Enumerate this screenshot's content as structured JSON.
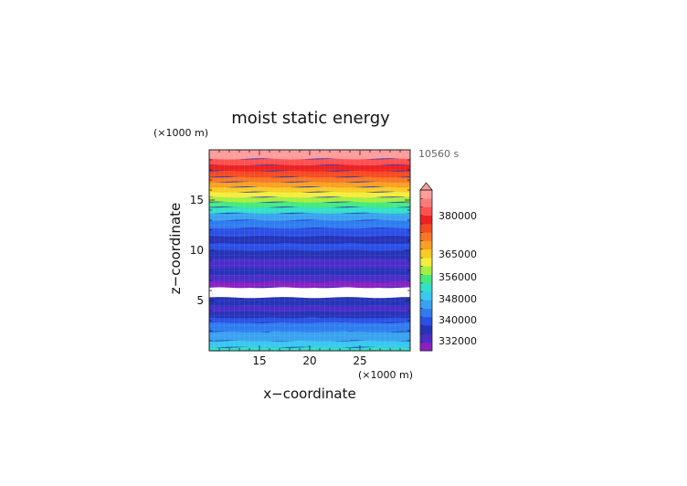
{
  "chart_data": {
    "type": "heatmap",
    "title": "moist static energy",
    "time_label": "10560 s",
    "xlabel": "x−coordinate",
    "ylabel": "z−coordinate",
    "x_unit": "(×1000 m)",
    "y_unit": "(×1000 m)",
    "xlim": [
      10,
      30
    ],
    "ylim": [
      0,
      20
    ],
    "x_ticks": [
      15,
      20,
      25
    ],
    "y_ticks": [
      5,
      10,
      15
    ],
    "colorbar": {
      "labels": [
        "380000",
        "365000",
        "356000",
        "348000",
        "340000",
        "332000"
      ],
      "extend": "max",
      "colors": [
        "#8a1fc2",
        "#4a2cc8",
        "#2533b8",
        "#2a4fe6",
        "#2f7cf0",
        "#3aa2f0",
        "#38c8f0",
        "#32e0c8",
        "#44ea7a",
        "#a4ee44",
        "#f4ee3c",
        "#f8cc24",
        "#f8a024",
        "#f87624",
        "#f64a22",
        "#ee2020",
        "#ff5050",
        "#ff7a7a",
        "#ff9c9c"
      ],
      "levels": [
        328000,
        330000,
        332000,
        334000,
        336000,
        338000,
        340000,
        342000,
        344000,
        346000,
        348000,
        352000,
        356000,
        360000,
        365000,
        370000,
        375000,
        380000,
        385000,
        390000
      ]
    },
    "layers": [
      {
        "z": [
          0.0,
          0.35
        ],
        "color": "#32e0c8"
      },
      {
        "z": [
          0.35,
          1.0
        ],
        "color": "#38c8f0"
      },
      {
        "z": [
          1.0,
          1.9
        ],
        "color": "#3aa2f0",
        "bump": {
          "center": 20,
          "width": 4,
          "height": 0.6,
          "above": "#38c8f0"
        }
      },
      {
        "z": [
          1.9,
          2.8
        ],
        "color": "#2f7cf0",
        "bump": {
          "center": 20,
          "width": 3,
          "height": 0.7,
          "above": "#3aa2f0"
        }
      },
      {
        "z": [
          2.8,
          3.3
        ],
        "color": "#2a4fe6"
      },
      {
        "z": [
          3.3,
          3.9
        ],
        "color": "#2533b8"
      },
      {
        "z": [
          3.9,
          4.5
        ],
        "color": "#4a2cc8"
      },
      {
        "z": [
          4.5,
          5.0
        ],
        "color": "#2533b8"
      },
      {
        "z": [
          5.0,
          5.3
        ],
        "color": "#2533b8"
      },
      {
        "z": [
          5.3,
          6.3
        ],
        "color": "#ffffff"
      },
      {
        "z": [
          6.3,
          6.9
        ],
        "color": "#8a1fc2"
      },
      {
        "z": [
          6.9,
          7.6
        ],
        "color": "#4a2cc8"
      },
      {
        "z": [
          7.6,
          8.2
        ],
        "color": "#2533b8"
      },
      {
        "z": [
          8.2,
          9.2
        ],
        "color": "#4a2cc8"
      },
      {
        "z": [
          9.2,
          10.0
        ],
        "color": "#2533b8"
      },
      {
        "z": [
          10.0,
          10.7
        ],
        "color": "#2a4fe6"
      },
      {
        "z": [
          10.7,
          11.4
        ],
        "color": "#2533b8"
      },
      {
        "z": [
          11.4,
          12.2
        ],
        "color": "#2a4fe6"
      },
      {
        "z": [
          12.2,
          13.0
        ],
        "color": "#2f7cf0"
      },
      {
        "z": [
          13.0,
          13.7
        ],
        "color": "#3aa2f0"
      },
      {
        "z": [
          13.7,
          14.3
        ],
        "color": "#32e0c8"
      },
      {
        "z": [
          14.3,
          14.8
        ],
        "color": "#44ea7a"
      },
      {
        "z": [
          14.8,
          15.3
        ],
        "color": "#a4ee44"
      },
      {
        "z": [
          15.3,
          15.8
        ],
        "color": "#f4ee3c"
      },
      {
        "z": [
          15.8,
          16.3
        ],
        "color": "#f8cc24"
      },
      {
        "z": [
          16.3,
          16.8
        ],
        "color": "#f8a024"
      },
      {
        "z": [
          16.8,
          17.3
        ],
        "color": "#f87624"
      },
      {
        "z": [
          17.3,
          17.9
        ],
        "color": "#f64a22"
      },
      {
        "z": [
          17.9,
          18.5
        ],
        "color": "#ee2020"
      },
      {
        "z": [
          18.5,
          19.1
        ],
        "color": "#ff5050"
      },
      {
        "z": [
          19.1,
          20.0
        ],
        "color": "#ff9c9c"
      }
    ]
  }
}
